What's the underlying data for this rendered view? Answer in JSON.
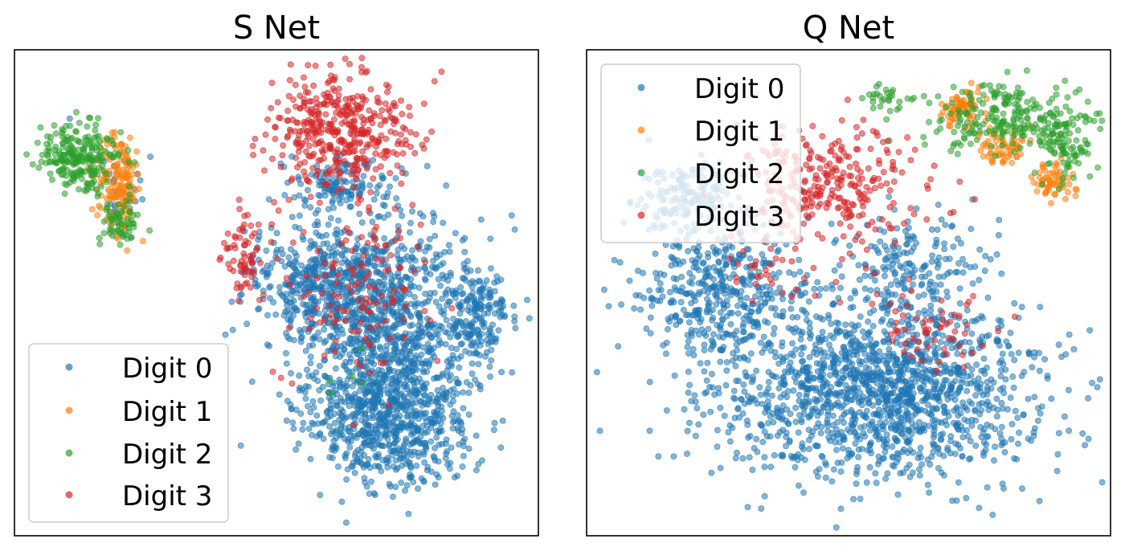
{
  "colors": {
    "Digit 0": "#1f77b4",
    "Digit 1": "#ff7f0e",
    "Digit 2": "#2ca02c",
    "Digit 3": "#d62728"
  },
  "chart_data": [
    {
      "type": "scatter",
      "title": "S Net",
      "xlabel": "",
      "ylabel": "",
      "axes": "no ticks",
      "grid": false,
      "legend": {
        "position": "lower-left",
        "entries": [
          "Digit 0",
          "Digit 1",
          "Digit 2",
          "Digit 3"
        ]
      },
      "marker_alpha": 0.55,
      "series": [
        {
          "name": "Digit 0",
          "clusters": [
            {
              "cx": 0.7,
              "cy": 0.55,
              "rx": 0.17,
              "ry": 0.2,
              "n": 900
            },
            {
              "cx": 0.72,
              "cy": 0.76,
              "rx": 0.16,
              "ry": 0.13,
              "n": 700
            },
            {
              "cx": 0.57,
              "cy": 0.47,
              "rx": 0.13,
              "ry": 0.12,
              "n": 300
            },
            {
              "cx": 0.88,
              "cy": 0.55,
              "rx": 0.06,
              "ry": 0.1,
              "n": 180
            },
            {
              "cx": 0.63,
              "cy": 0.28,
              "rx": 0.1,
              "ry": 0.06,
              "n": 120
            },
            {
              "cx": 0.2,
              "cy": 0.28,
              "rx": 0.06,
              "ry": 0.09,
              "n": 25
            }
          ]
        },
        {
          "name": "Digit 1",
          "clusters": [
            {
              "cx": 0.2,
              "cy": 0.27,
              "rx": 0.045,
              "ry": 0.1,
              "n": 170
            }
          ]
        },
        {
          "name": "Digit 2",
          "clusters": [
            {
              "cx": 0.12,
              "cy": 0.22,
              "rx": 0.08,
              "ry": 0.07,
              "n": 230
            },
            {
              "cx": 0.2,
              "cy": 0.35,
              "rx": 0.04,
              "ry": 0.05,
              "n": 60
            },
            {
              "cx": 0.64,
              "cy": 0.7,
              "rx": 0.05,
              "ry": 0.1,
              "n": 5
            }
          ]
        },
        {
          "name": "Digit 3",
          "clusters": [
            {
              "cx": 0.62,
              "cy": 0.17,
              "rx": 0.14,
              "ry": 0.11,
              "n": 420
            },
            {
              "cx": 0.44,
              "cy": 0.42,
              "rx": 0.045,
              "ry": 0.09,
              "n": 70
            },
            {
              "cx": 0.66,
              "cy": 0.5,
              "rx": 0.15,
              "ry": 0.18,
              "n": 130
            }
          ]
        }
      ]
    },
    {
      "type": "scatter",
      "title": "Q Net",
      "xlabel": "",
      "ylabel": "",
      "axes": "no ticks",
      "grid": false,
      "legend": {
        "position": "upper-left",
        "entries": [
          "Digit 0",
          "Digit 1",
          "Digit 2",
          "Digit 3"
        ]
      },
      "marker_alpha": 0.55,
      "series": [
        {
          "name": "Digit 0",
          "clusters": [
            {
              "cx": 0.55,
              "cy": 0.7,
              "rx": 0.32,
              "ry": 0.18,
              "n": 1500
            },
            {
              "cx": 0.25,
              "cy": 0.5,
              "rx": 0.15,
              "ry": 0.13,
              "n": 400
            },
            {
              "cx": 0.2,
              "cy": 0.3,
              "rx": 0.1,
              "ry": 0.08,
              "n": 150
            },
            {
              "cx": 0.6,
              "cy": 0.45,
              "rx": 0.15,
              "ry": 0.12,
              "n": 200
            }
          ]
        },
        {
          "name": "Digit 1",
          "clusters": [
            {
              "cx": 0.72,
              "cy": 0.12,
              "rx": 0.04,
              "ry": 0.04,
              "n": 70
            },
            {
              "cx": 0.79,
              "cy": 0.2,
              "rx": 0.05,
              "ry": 0.04,
              "n": 60
            },
            {
              "cx": 0.89,
              "cy": 0.27,
              "rx": 0.04,
              "ry": 0.04,
              "n": 60
            }
          ]
        },
        {
          "name": "Digit 2",
          "clusters": [
            {
              "cx": 0.8,
              "cy": 0.14,
              "rx": 0.14,
              "ry": 0.07,
              "n": 220
            },
            {
              "cx": 0.92,
              "cy": 0.19,
              "rx": 0.06,
              "ry": 0.07,
              "n": 90
            },
            {
              "cx": 0.57,
              "cy": 0.1,
              "rx": 0.06,
              "ry": 0.03,
              "n": 30
            }
          ]
        },
        {
          "name": "Digit 3",
          "clusters": [
            {
              "cx": 0.47,
              "cy": 0.28,
              "rx": 0.16,
              "ry": 0.12,
              "n": 300
            },
            {
              "cx": 0.66,
              "cy": 0.57,
              "rx": 0.12,
              "ry": 0.07,
              "n": 60
            },
            {
              "cx": 0.35,
              "cy": 0.45,
              "rx": 0.1,
              "ry": 0.08,
              "n": 30
            }
          ]
        }
      ]
    }
  ]
}
